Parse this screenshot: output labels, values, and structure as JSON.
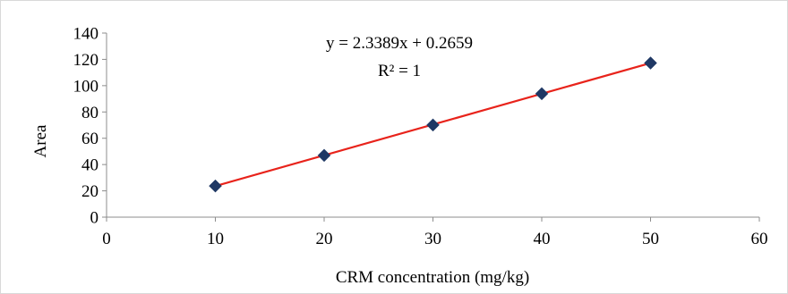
{
  "chart_data": {
    "type": "scatter",
    "title": "",
    "xlabel": "CRM concentration (mg/kg)",
    "ylabel": "Area",
    "xlim": [
      0,
      60
    ],
    "ylim": [
      0,
      140
    ],
    "x_ticks": [
      "0",
      "10",
      "20",
      "30",
      "40",
      "50",
      "60"
    ],
    "y_ticks": [
      "0",
      "20",
      "40",
      "60",
      "80",
      "100",
      "120",
      "140"
    ],
    "grid": false,
    "legend": "none",
    "series": [
      {
        "x": [
          10,
          20,
          30,
          40,
          50
        ],
        "y": [
          23.7,
          47.0,
          70.1,
          93.9,
          117.2
        ],
        "marker": "diamond",
        "color": "#1f3864"
      }
    ],
    "trendline": {
      "type": "linear",
      "slope": 2.3389,
      "intercept": 0.2659,
      "x_range": [
        10,
        50
      ],
      "color": "#e8231b"
    },
    "annotations": [
      "y = 2.3389x + 0.2659",
      "R² = 1"
    ]
  }
}
